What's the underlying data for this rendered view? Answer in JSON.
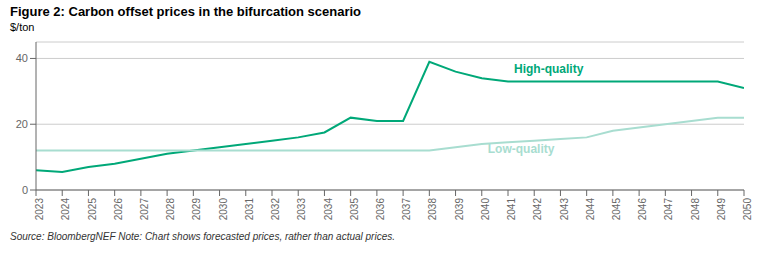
{
  "chart_data": {
    "type": "line",
    "title": "Figure 2: Carbon offset prices in the bifurcation scenario",
    "ylabel": "$/ton",
    "caption": "Source: BloombergNEF   Note: Chart shows forecasted prices, rather than actual prices.",
    "x": [
      2023,
      2024,
      2025,
      2026,
      2027,
      2028,
      2029,
      2030,
      2031,
      2032,
      2033,
      2034,
      2035,
      2036,
      2037,
      2038,
      2039,
      2040,
      2041,
      2042,
      2043,
      2044,
      2045,
      2046,
      2047,
      2048,
      2049,
      2050
    ],
    "series": [
      {
        "name": "High-quality",
        "color": "#00A878",
        "values": [
          6,
          5.5,
          7,
          8,
          9.5,
          11,
          12,
          13,
          14,
          15,
          16,
          17.5,
          22,
          21,
          21,
          39,
          36,
          34,
          33,
          33,
          33,
          33,
          33,
          33,
          33,
          33,
          33,
          31
        ]
      },
      {
        "name": "Low-quality",
        "color": "#A8DDD0",
        "values": [
          12,
          12,
          12,
          12,
          12,
          12,
          12,
          12,
          12,
          12,
          12,
          12,
          12,
          12,
          12,
          12,
          13,
          14,
          14.5,
          15,
          15.5,
          16,
          18,
          19,
          20,
          21,
          22,
          22
        ]
      }
    ],
    "annotations": [
      {
        "text": "High-quality",
        "x": 2041,
        "y": 37
      },
      {
        "text": "Low-quality",
        "x": 2040,
        "y": 12.5
      }
    ],
    "xlim": [
      2023,
      2050
    ],
    "xticks": [
      2023,
      2024,
      2025,
      2026,
      2027,
      2028,
      2029,
      2030,
      2031,
      2032,
      2033,
      2034,
      2035,
      2036,
      2037,
      2038,
      2039,
      2040,
      2041,
      2042,
      2043,
      2044,
      2045,
      2046,
      2047,
      2048,
      2049,
      2050
    ],
    "ylim": [
      0,
      45
    ],
    "yticks": [
      0,
      20,
      40
    ],
    "grid": true
  }
}
